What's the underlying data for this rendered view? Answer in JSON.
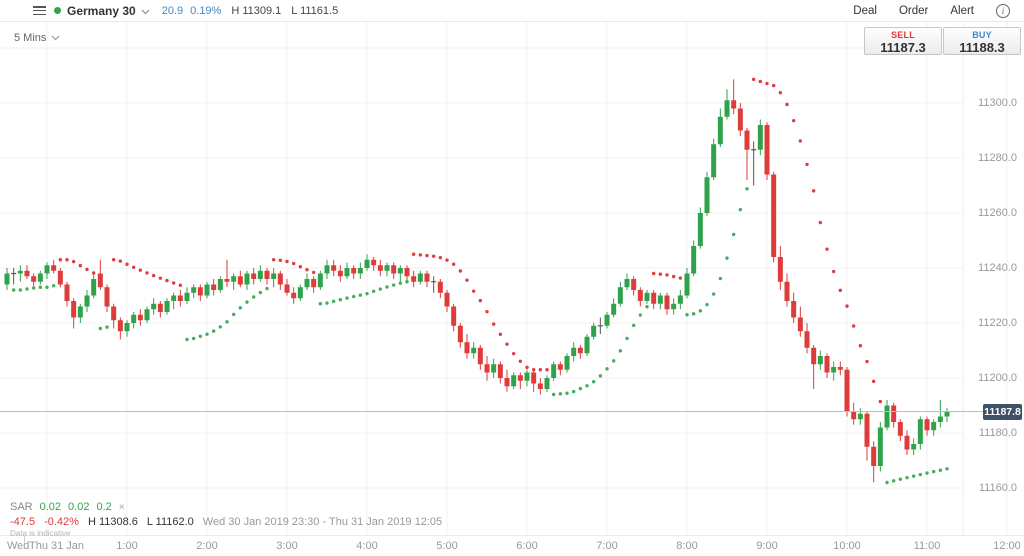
{
  "header": {
    "symbol": "Germany 30",
    "change": "20.9",
    "change_pct": "0.19%",
    "day_high": "H 11309.1",
    "day_low": "L 11161.5",
    "deal": "Deal",
    "order": "Order",
    "alert": "Alert",
    "info_glyph": "i"
  },
  "toolbar": {
    "timeframe": "5 Mins"
  },
  "ticket": {
    "sell_label": "SELL",
    "sell_price": "11187.3",
    "buy_label": "BUY",
    "buy_price": "11188.3"
  },
  "indicator": {
    "name": "SAR",
    "param1": "0.02",
    "param2": "0.02",
    "param3": "0.2",
    "close_glyph": "×"
  },
  "stats": {
    "change": "-47.5",
    "change_pct": "-0.42%",
    "high": "H 11308.6",
    "low": "L 11162.0",
    "range": "Wed 30 Jan 2019 23:30 - Thu 31 Jan 2019 12:05",
    "disclaimer": "Data is indicative"
  },
  "price_axis": {
    "ticks": [
      "11300.0",
      "11280.0",
      "11260.0",
      "11240.0",
      "11220.0",
      "11200.0",
      "11180.0",
      "11160.0"
    ],
    "current": "11187.8"
  },
  "time_axis": {
    "day_left": "Wed",
    "day_right": "Thu 31 Jan",
    "hours": [
      "1:00",
      "2:00",
      "3:00",
      "4:00",
      "5:00",
      "6:00",
      "7:00",
      "8:00",
      "9:00",
      "10:00",
      "11:00",
      "12:00"
    ]
  },
  "colors": {
    "up": "#31a24c",
    "down": "#de3b3b",
    "doji": "#555555",
    "sar_up": "#44ad5b",
    "sar_down": "#e03c3c",
    "grid": "#f2f2f2",
    "axis_text": "#999999",
    "badge": "#3e5166",
    "blue": "#4187c7",
    "price_line": "#b9bfc6"
  },
  "chart_data": {
    "type": "candlestick",
    "title": "Germany 30, 5 minute candles with Parabolic SAR",
    "timeframe": "5 Mins",
    "x_start": "Wed 30 Jan 2019 23:30",
    "x_end": "Thu 31 Jan 2019 12:05",
    "ylim": [
      11155,
      11325
    ],
    "y_grid": [
      11320,
      11300,
      11280,
      11260,
      11240,
      11220,
      11200,
      11180,
      11160
    ],
    "grid": true,
    "last_price": 11187.8,
    "sar": {
      "step": 0.02,
      "initial": 0.02,
      "max": 0.2
    },
    "candles": [
      [
        11234,
        11240,
        11232,
        11238
      ],
      [
        11238,
        11240,
        11234,
        11238
      ],
      [
        11238,
        11241,
        11235,
        11239
      ],
      [
        11239,
        11241,
        11236,
        11237
      ],
      [
        11237,
        11238,
        11233,
        11235
      ],
      [
        11235,
        11239,
        11234,
        11238
      ],
      [
        11238,
        11242,
        11236,
        11241
      ],
      [
        11241,
        11243,
        11238,
        11239
      ],
      [
        11239,
        11240,
        11233,
        11234
      ],
      [
        11234,
        11235,
        11226,
        11228
      ],
      [
        11228,
        11229,
        11218,
        11222
      ],
      [
        11222,
        11227,
        11220,
        11226
      ],
      [
        11226,
        11232,
        11224,
        11230
      ],
      [
        11230,
        11238,
        11229,
        11236
      ],
      [
        11238,
        11243,
        11232,
        11233
      ],
      [
        11233,
        11234,
        11224,
        11226
      ],
      [
        11226,
        11227,
        11218,
        11221
      ],
      [
        11221,
        11222,
        11214,
        11217
      ],
      [
        11217,
        11221,
        11215,
        11220
      ],
      [
        11220,
        11224,
        11218,
        11223
      ],
      [
        11223,
        11225,
        11219,
        11221
      ],
      [
        11221,
        11226,
        11220,
        11225
      ],
      [
        11225,
        11229,
        11223,
        11227
      ],
      [
        11227,
        11228,
        11222,
        11224
      ],
      [
        11224,
        11229,
        11223,
        11228
      ],
      [
        11228,
        11231,
        11225,
        11230
      ],
      [
        11230,
        11232,
        11226,
        11228
      ],
      [
        11228,
        11233,
        11227,
        11231
      ],
      [
        11231,
        11234,
        11229,
        11233
      ],
      [
        11233,
        11234,
        11228,
        11230
      ],
      [
        11230,
        11235,
        11229,
        11234
      ],
      [
        11234,
        11236,
        11230,
        11232
      ],
      [
        11232,
        11237,
        11231,
        11236
      ],
      [
        11236,
        11243,
        11233,
        11235
      ],
      [
        11235,
        11238,
        11232,
        11237
      ],
      [
        11237,
        11239,
        11233,
        11234
      ],
      [
        11234,
        11239,
        11232,
        11238
      ],
      [
        11238,
        11240,
        11234,
        11236
      ],
      [
        11236,
        11241,
        11235,
        11239
      ],
      [
        11239,
        11240,
        11234,
        11236
      ],
      [
        11236,
        11240,
        11233,
        11238
      ],
      [
        11238,
        11239,
        11232,
        11234
      ],
      [
        11234,
        11236,
        11230,
        11231
      ],
      [
        11231,
        11233,
        11227,
        11229
      ],
      [
        11229,
        11234,
        11228,
        11233
      ],
      [
        11233,
        11238,
        11232,
        11236
      ],
      [
        11236,
        11237,
        11231,
        11233
      ],
      [
        11233,
        11239,
        11232,
        11238
      ],
      [
        11238,
        11243,
        11236,
        11241
      ],
      [
        11241,
        11243,
        11237,
        11239
      ],
      [
        11239,
        11241,
        11235,
        11237
      ],
      [
        11237,
        11242,
        11236,
        11240
      ],
      [
        11240,
        11241,
        11236,
        11238
      ],
      [
        11238,
        11242,
        11236,
        11240
      ],
      [
        11240,
        11245,
        11239,
        11243
      ],
      [
        11243,
        11244,
        11239,
        11241
      ],
      [
        11241,
        11243,
        11237,
        11239
      ],
      [
        11239,
        11242,
        11237,
        11241
      ],
      [
        11241,
        11242,
        11236,
        11238
      ],
      [
        11238,
        11241,
        11235,
        11240
      ],
      [
        11240,
        11241,
        11235,
        11237
      ],
      [
        11237,
        11239,
        11233,
        11235
      ],
      [
        11235,
        11239,
        11234,
        11238
      ],
      [
        11238,
        11239,
        11233,
        11235
      ],
      [
        11235,
        11237,
        11231,
        11235
      ],
      [
        11235,
        11236,
        11229,
        11231
      ],
      [
        11231,
        11232,
        11224,
        11226
      ],
      [
        11226,
        11227,
        11217,
        11219
      ],
      [
        11219,
        11220,
        11211,
        11213
      ],
      [
        11213,
        11216,
        11207,
        11209
      ],
      [
        11209,
        11213,
        11207,
        11211
      ],
      [
        11211,
        11212,
        11203,
        11205
      ],
      [
        11205,
        11208,
        11199,
        11202
      ],
      [
        11202,
        11207,
        11200,
        11205
      ],
      [
        11205,
        11206,
        11198,
        11200
      ],
      [
        11200,
        11203,
        11195,
        11197
      ],
      [
        11197,
        11202,
        11196,
        11201
      ],
      [
        11201,
        11202,
        11196,
        11199
      ],
      [
        11199,
        11203,
        11197,
        11202
      ],
      [
        11202,
        11203,
        11195,
        11198
      ],
      [
        11198,
        11200,
        11194,
        11196
      ],
      [
        11196,
        11201,
        11195,
        11200
      ],
      [
        11200,
        11206,
        11199,
        11205
      ],
      [
        11205,
        11206,
        11201,
        11203
      ],
      [
        11203,
        11209,
        11202,
        11208
      ],
      [
        11208,
        11213,
        11206,
        11211
      ],
      [
        11211,
        11212,
        11207,
        11209
      ],
      [
        11209,
        11216,
        11208,
        11215
      ],
      [
        11215,
        11220,
        11214,
        11219
      ],
      [
        11219,
        11222,
        11216,
        11219
      ],
      [
        11219,
        11224,
        11218,
        11223
      ],
      [
        11223,
        11229,
        11222,
        11227
      ],
      [
        11227,
        11235,
        11226,
        11233
      ],
      [
        11233,
        11238,
        11232,
        11236
      ],
      [
        11236,
        11237,
        11230,
        11232
      ],
      [
        11232,
        11233,
        11226,
        11228
      ],
      [
        11228,
        11232,
        11227,
        11231
      ],
      [
        11231,
        11232,
        11225,
        11227
      ],
      [
        11227,
        11231,
        11225,
        11230
      ],
      [
        11230,
        11231,
        11223,
        11225
      ],
      [
        11225,
        11229,
        11223,
        11227
      ],
      [
        11227,
        11232,
        11225,
        11230
      ],
      [
        11230,
        11240,
        11229,
        11238
      ],
      [
        11238,
        11250,
        11237,
        11248
      ],
      [
        11248,
        11262,
        11247,
        11260
      ],
      [
        11260,
        11275,
        11259,
        11273
      ],
      [
        11273,
        11287,
        11272,
        11285
      ],
      [
        11285,
        11298,
        11284,
        11295
      ],
      [
        11295,
        11305,
        11294,
        11301
      ],
      [
        11301,
        11308.6,
        11296,
        11298
      ],
      [
        11298,
        11300,
        11288,
        11290
      ],
      [
        11290,
        11291,
        11272,
        11283
      ],
      [
        11283,
        11286,
        11270,
        11283
      ],
      [
        11283,
        11294,
        11281,
        11292
      ],
      [
        11292,
        11293,
        11272,
        11274
      ],
      [
        11274,
        11275,
        11242,
        11244
      ],
      [
        11244,
        11248,
        11232,
        11235
      ],
      [
        11235,
        11238,
        11226,
        11228
      ],
      [
        11228,
        11231,
        11220,
        11222
      ],
      [
        11222,
        11226,
        11215,
        11217
      ],
      [
        11217,
        11220,
        11209,
        11211
      ],
      [
        11211,
        11212,
        11196,
        11205
      ],
      [
        11205,
        11210,
        11203,
        11208
      ],
      [
        11208,
        11209,
        11200,
        11202
      ],
      [
        11202,
        11206,
        11199,
        11204
      ],
      [
        11204,
        11206,
        11201,
        11203
      ],
      [
        11203,
        11204,
        11186,
        11188
      ],
      [
        11188,
        11191,
        11183,
        11185
      ],
      [
        11185,
        11189,
        11183,
        11187
      ],
      [
        11187,
        11188,
        11170,
        11175
      ],
      [
        11175,
        11177,
        11162,
        11168
      ],
      [
        11168,
        11184,
        11166,
        11182
      ],
      [
        11182,
        11192,
        11181,
        11190
      ],
      [
        11190,
        11191,
        11182,
        11184
      ],
      [
        11184,
        11185,
        11177,
        11179
      ],
      [
        11179,
        11181,
        11172,
        11174
      ],
      [
        11174,
        11178,
        11172,
        11176
      ],
      [
        11176,
        11186,
        11174,
        11185
      ],
      [
        11185,
        11186,
        11179,
        11181
      ],
      [
        11181,
        11185,
        11179,
        11184
      ],
      [
        11184,
        11192,
        11182,
        11186
      ],
      [
        11186,
        11189,
        11184,
        11187.8
      ]
    ]
  }
}
